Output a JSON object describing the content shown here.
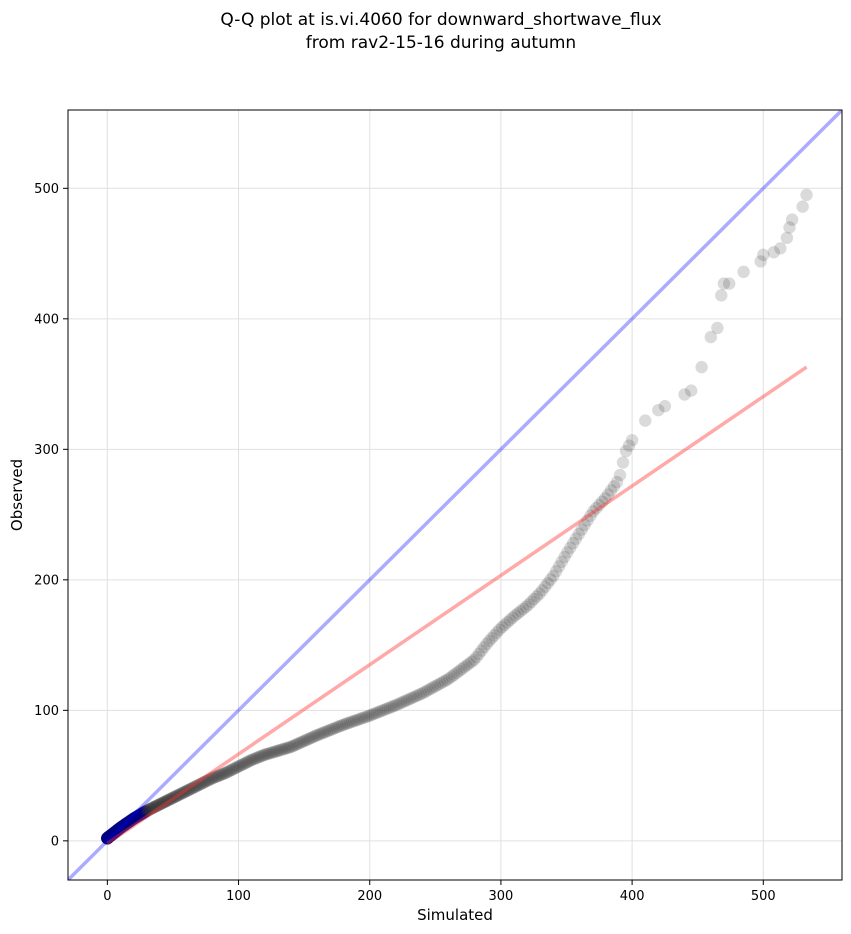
{
  "chart_data": {
    "type": "scatter",
    "title": [
      "Q-Q plot at is.vi.4060 for downward_shortwave_flux",
      "from rav2-15-16 during autumn"
    ],
    "xlabel": "Simulated",
    "ylabel": "Observed",
    "xlim": [
      -30,
      560
    ],
    "ylim": [
      -30,
      560
    ],
    "xticks": [
      0,
      100,
      200,
      300,
      400,
      500
    ],
    "yticks": [
      0,
      100,
      200,
      300,
      400,
      500
    ],
    "grid": true,
    "colors": {
      "points": "#333333",
      "points_early": "#000080",
      "one_to_one_line": "#0000ff",
      "fit_line": "#ff3333",
      "grid": "#e0e0e0"
    },
    "one_to_one_line": {
      "x": [
        -30,
        560
      ],
      "y": [
        -30,
        560
      ]
    },
    "fit_line": {
      "x": [
        0,
        533
      ],
      "y": [
        -2,
        363
      ]
    },
    "curve_knots": [
      [
        0,
        2
      ],
      [
        10,
        10
      ],
      [
        20,
        17
      ],
      [
        30,
        23
      ],
      [
        40,
        28
      ],
      [
        50,
        33
      ],
      [
        60,
        38
      ],
      [
        70,
        43
      ],
      [
        80,
        48
      ],
      [
        90,
        52
      ],
      [
        100,
        57
      ],
      [
        110,
        62
      ],
      [
        120,
        66
      ],
      [
        140,
        72
      ],
      [
        160,
        81
      ],
      [
        180,
        89
      ],
      [
        200,
        96
      ],
      [
        220,
        104
      ],
      [
        240,
        113
      ],
      [
        260,
        124
      ],
      [
        280,
        139
      ],
      [
        290,
        152
      ],
      [
        300,
        163
      ],
      [
        310,
        172
      ],
      [
        320,
        180
      ],
      [
        330,
        190
      ],
      [
        340,
        203
      ],
      [
        350,
        220
      ],
      [
        360,
        236
      ],
      [
        370,
        252
      ],
      [
        380,
        263
      ],
      [
        390,
        277
      ],
      [
        395,
        298
      ],
      [
        400,
        307
      ],
      [
        410,
        320
      ],
      [
        420,
        332
      ],
      [
        440,
        343
      ],
      [
        450,
        352
      ],
      [
        460,
        385
      ],
      [
        470,
        425
      ],
      [
        480,
        435
      ],
      [
        500,
        446
      ],
      [
        510,
        455
      ],
      [
        520,
        468
      ],
      [
        533,
        494
      ]
    ],
    "sparse_points": [
      [
        410,
        322
      ],
      [
        420,
        330
      ],
      [
        425,
        333
      ],
      [
        440,
        342
      ],
      [
        445,
        345
      ],
      [
        453,
        363
      ],
      [
        460,
        386
      ],
      [
        465,
        393
      ],
      [
        468,
        418
      ],
      [
        470,
        427
      ],
      [
        474,
        427
      ],
      [
        485,
        436
      ],
      [
        498,
        444
      ],
      [
        500,
        449
      ],
      [
        508,
        451
      ],
      [
        513,
        454
      ],
      [
        518,
        462
      ],
      [
        520,
        470
      ],
      [
        522,
        476
      ],
      [
        530,
        486
      ],
      [
        533,
        495
      ]
    ],
    "point_count": 380
  }
}
